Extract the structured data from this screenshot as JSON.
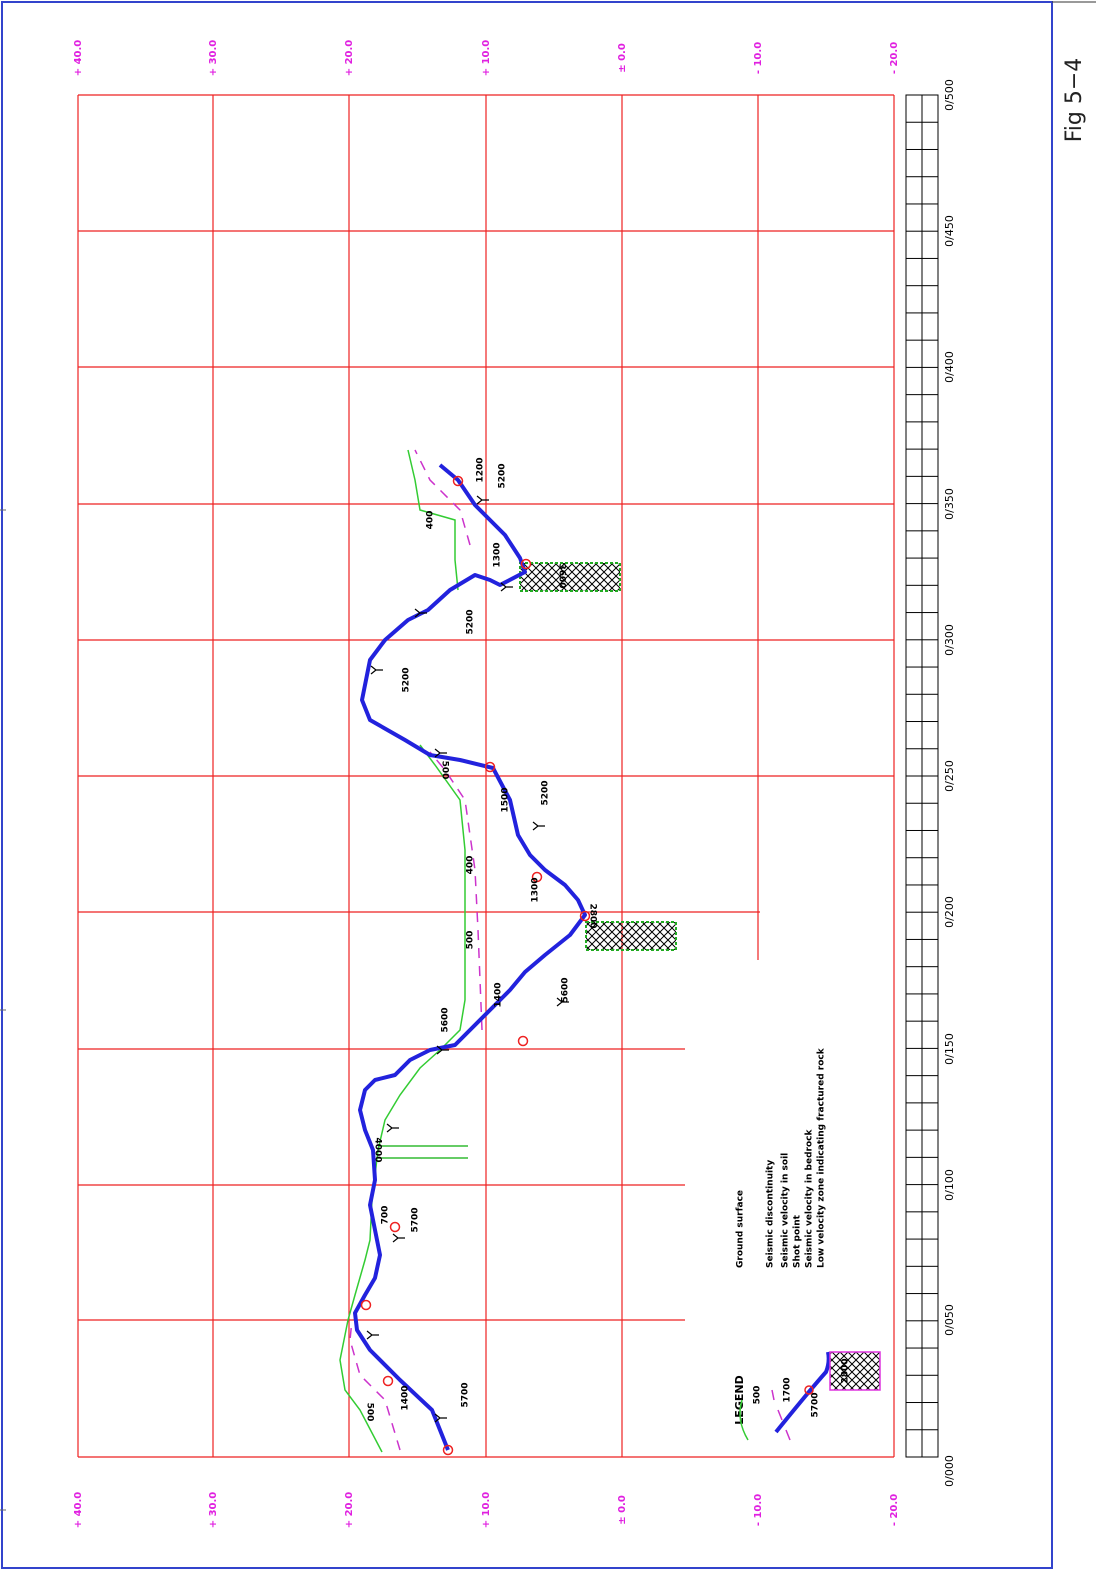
{
  "figure": {
    "label": "Fig 5−4"
  },
  "elevation_labels": {
    "top": [
      "+ 40.0",
      "+ 30.0",
      "+ 20.0",
      "+ 10.0",
      "± 0.0",
      "- 10.0",
      "- 20.0"
    ],
    "bottom": [
      "+ 40.0",
      "+ 30.0",
      "+ 20.0",
      "+ 10.0",
      "± 0.0",
      "- 10.0",
      "- 20.0"
    ]
  },
  "distance_labels": [
    "0/000",
    "0/050",
    "0/100",
    "0/150",
    "0/200",
    "0/250",
    "0/300",
    "0/350",
    "0/400",
    "0/450",
    "0/500"
  ],
  "velocity_labels": [
    "5700",
    "1400",
    "500",
    "700",
    "5700",
    "4000",
    "5600",
    "1400",
    "500",
    "5600",
    "1300",
    "2800",
    "400",
    "1500",
    "5200",
    "500",
    "5200",
    "5200",
    "1300",
    "400",
    "3600",
    "1200",
    "5200"
  ],
  "legend": {
    "title": "LEGEND",
    "items": [
      "Ground surface",
      "Seismic discontinuity",
      "Seismic velocity in soil",
      "Shot point",
      "Seismic velocity in bedrock",
      "Low velocity zone indicating fractured rock"
    ],
    "samples": [
      "500",
      "1700",
      "5700",
      "2800"
    ]
  }
}
